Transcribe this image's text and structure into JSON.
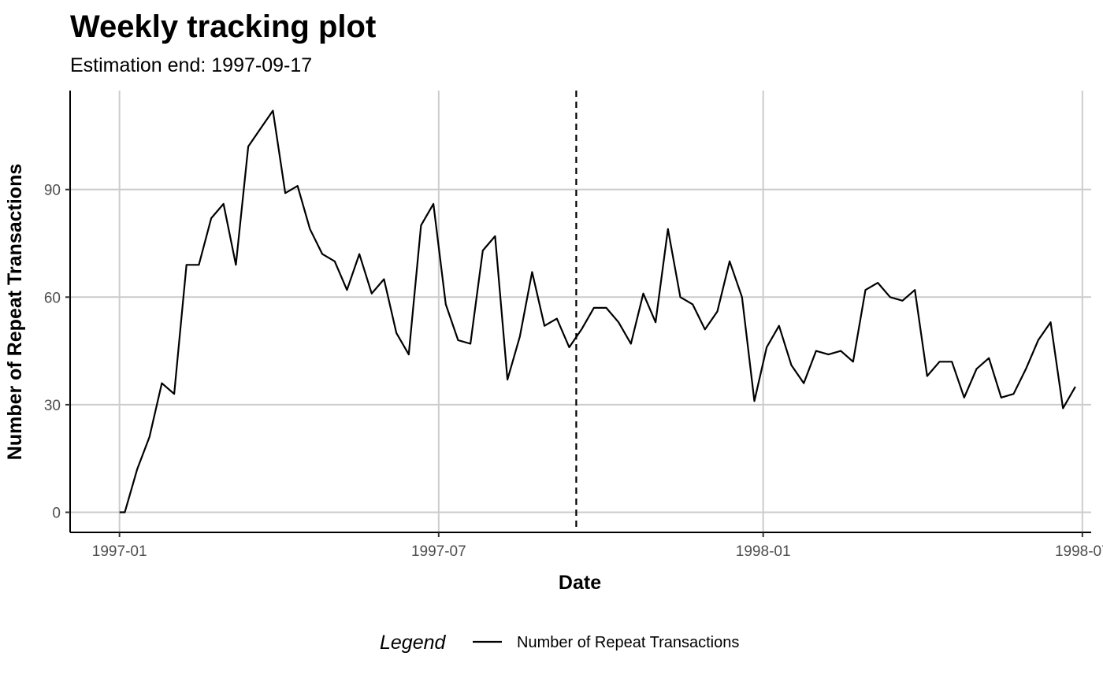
{
  "chart_data": {
    "type": "line",
    "title": "Weekly tracking plot",
    "subtitle": "Estimation end: 1997-09-17",
    "xlabel": "Date",
    "ylabel": "Number of Repeat Transactions",
    "x_ticks": [
      "1997-01",
      "1997-07",
      "1998-01",
      "1998-07"
    ],
    "y_ticks": [
      0,
      30,
      60,
      90
    ],
    "xlim": [
      "1996-12-04",
      "1998-07-06"
    ],
    "ylim": [
      -5.6,
      117.6
    ],
    "grid": true,
    "legend": {
      "title": "Legend",
      "position": "bottom",
      "entries": [
        "Number of Repeat Transactions"
      ]
    },
    "vline": {
      "x": "1997-09-17",
      "style": "dashed"
    },
    "series": [
      {
        "name": "Number of Repeat Transactions",
        "color": "#000000",
        "x": [
          "1997-01-01",
          "1997-01-04",
          "1997-01-11",
          "1997-01-18",
          "1997-01-25",
          "1997-02-01",
          "1997-02-08",
          "1997-02-15",
          "1997-02-22",
          "1997-03-01",
          "1997-03-08",
          "1997-03-15",
          "1997-03-22",
          "1997-03-29",
          "1997-04-05",
          "1997-04-12",
          "1997-04-19",
          "1997-04-26",
          "1997-05-03",
          "1997-05-10",
          "1997-05-17",
          "1997-05-24",
          "1997-05-31",
          "1997-06-07",
          "1997-06-14",
          "1997-06-21",
          "1997-06-28",
          "1997-07-05",
          "1997-07-12",
          "1997-07-19",
          "1997-07-26",
          "1997-08-02",
          "1997-08-09",
          "1997-08-16",
          "1997-08-23",
          "1997-08-30",
          "1997-09-06",
          "1997-09-13",
          "1997-09-20",
          "1997-09-27",
          "1997-10-04",
          "1997-10-11",
          "1997-10-18",
          "1997-10-25",
          "1997-11-01",
          "1997-11-08",
          "1997-11-15",
          "1997-11-22",
          "1997-11-29",
          "1997-12-06",
          "1997-12-13",
          "1997-12-20",
          "1997-12-27",
          "1998-01-03",
          "1998-01-10",
          "1998-01-17",
          "1998-01-24",
          "1998-01-31",
          "1998-02-07",
          "1998-02-14",
          "1998-02-21",
          "1998-02-28",
          "1998-03-07",
          "1998-03-14",
          "1998-03-21",
          "1998-03-28",
          "1998-04-04",
          "1998-04-11",
          "1998-04-18",
          "1998-04-25",
          "1998-05-02",
          "1998-05-09",
          "1998-05-16",
          "1998-05-23",
          "1998-05-30",
          "1998-06-06",
          "1998-06-13",
          "1998-06-20",
          "1998-06-27"
        ],
        "values": [
          0,
          0,
          12,
          21,
          36,
          33,
          69,
          69,
          82,
          86,
          69,
          102,
          107,
          112,
          89,
          91,
          79,
          72,
          70,
          62,
          72,
          61,
          65,
          50,
          44,
          80,
          86,
          58,
          48,
          47,
          73,
          77,
          37,
          49,
          67,
          52,
          54,
          46,
          51,
          57,
          57,
          53,
          47,
          61,
          53,
          79,
          60,
          58,
          51,
          56,
          70,
          60,
          31,
          46,
          52,
          41,
          36,
          45,
          44,
          45,
          42,
          62,
          64,
          60,
          59,
          62,
          38,
          42,
          42,
          32,
          40,
          43,
          32,
          33,
          40,
          48,
          53,
          29,
          35
        ]
      }
    ]
  }
}
